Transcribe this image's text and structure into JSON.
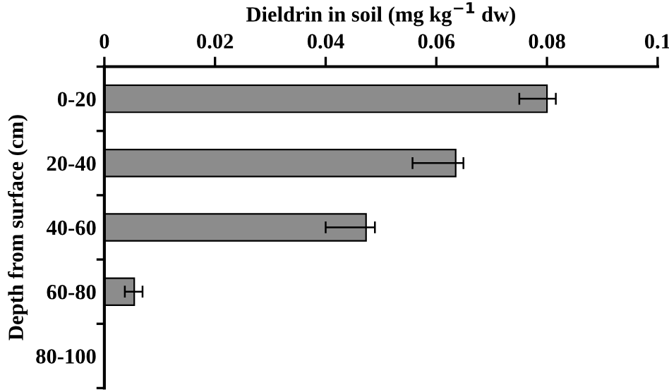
{
  "chart_data": {
    "type": "bar",
    "orientation": "horizontal",
    "xlabel": "Dieldrin in soil (mg kg$^{−1}$ dw)",
    "ylabel": "Depth from surface (cm)",
    "categories": [
      "0-20",
      "20-40",
      "40-60",
      "60-80",
      "80-100"
    ],
    "values": [
      0.08,
      0.0635,
      0.0473,
      0.0054,
      null
    ],
    "errors": [
      [
        0.075,
        0.0816
      ],
      [
        0.0557,
        0.0649
      ],
      [
        0.04,
        0.0489
      ],
      [
        0.0037,
        0.0069
      ],
      null
    ],
    "color": "#8c8c8c",
    "xlim": [
      0,
      0.1
    ],
    "xticks": [
      0,
      0.02,
      0.04,
      0.06,
      0.08,
      0.1
    ],
    "grid": false,
    "legend": false
  }
}
